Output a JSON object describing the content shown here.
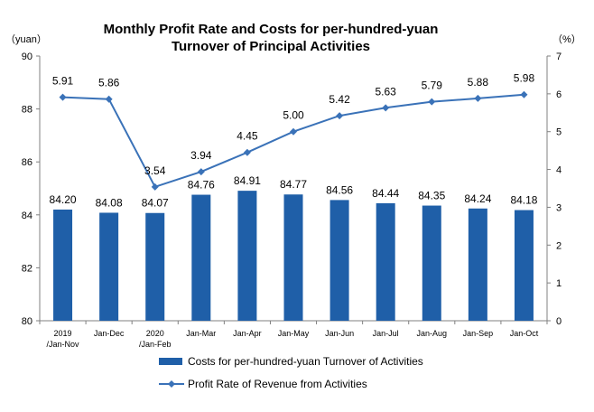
{
  "chart_data": {
    "type": "bar",
    "title_line1": "Monthly Profit Rate and Costs for per-hundred-yuan",
    "title_line2": "Turnover of Principal Activities",
    "y_left_unit": "（yuan）",
    "y_right_unit": "（%）",
    "categories": [
      [
        "2019",
        "/Jan-Nov"
      ],
      [
        "Jan-Dec"
      ],
      [
        "2020",
        "/Jan-Feb"
      ],
      [
        "Jan-Mar"
      ],
      [
        "Jan-Apr"
      ],
      [
        "Jan-May"
      ],
      [
        "Jan-Jun"
      ],
      [
        "Jan-Jul"
      ],
      [
        "Jan-Aug"
      ],
      [
        "Jan-Sep"
      ],
      [
        "Jan-Oct"
      ]
    ],
    "ylim_left": [
      80,
      90
    ],
    "yticks_left": [
      80,
      82,
      84,
      86,
      88,
      90
    ],
    "ylim_right": [
      0,
      7
    ],
    "yticks_right": [
      0,
      1,
      2,
      3,
      4,
      5,
      6,
      7
    ],
    "series": [
      {
        "name": "Costs for per-hundred-yuan Turnover of  Activities",
        "type": "bar",
        "axis": "left",
        "color": "#1f5fa8",
        "values": [
          84.2,
          84.08,
          84.07,
          84.76,
          84.91,
          84.77,
          84.56,
          84.44,
          84.35,
          84.24,
          84.18
        ],
        "labels": [
          "84.20",
          "84.08",
          "84.07",
          "84.76",
          "84.91",
          "84.77",
          "84.56",
          "84.44",
          "84.35",
          "84.24",
          "84.18"
        ]
      },
      {
        "name": "Profit Rate of Revenue from Activities",
        "type": "line",
        "axis": "right",
        "color": "#3a72b8",
        "values": [
          5.91,
          5.86,
          3.54,
          3.94,
          4.45,
          5.0,
          5.42,
          5.63,
          5.79,
          5.88,
          5.98
        ],
        "labels": [
          "5.91",
          "5.86",
          "3.54",
          "3.94",
          "4.45",
          "5.00",
          "5.42",
          "5.63",
          "5.79",
          "5.88",
          "5.98"
        ]
      }
    ],
    "legend_position": "bottom",
    "grid": false
  }
}
